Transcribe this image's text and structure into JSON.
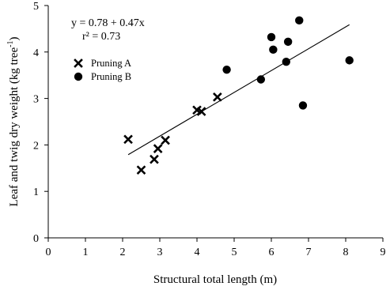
{
  "chart_data": {
    "type": "scatter",
    "title": "",
    "xlabel": "Structural total length (m)",
    "ylabel": "Leaf and twig dry weight (kg tree",
    "ylabel_superscript": "-1",
    "ylabel_suffix": ")",
    "xlim": [
      0,
      9
    ],
    "ylim": [
      0,
      5
    ],
    "x_ticks": [
      "0",
      "1",
      "2",
      "3",
      "4",
      "5",
      "6",
      "7",
      "8",
      "9"
    ],
    "y_ticks": [
      "0",
      "1",
      "2",
      "3",
      "4",
      "5"
    ],
    "grid": false,
    "legend_position": "top-left",
    "series": [
      {
        "name": "Pruning A",
        "marker": "x",
        "points": [
          {
            "x": 2.15,
            "y": 2.12
          },
          {
            "x": 2.5,
            "y": 1.46
          },
          {
            "x": 2.85,
            "y": 1.69
          },
          {
            "x": 2.95,
            "y": 1.92
          },
          {
            "x": 3.15,
            "y": 2.1
          },
          {
            "x": 4.0,
            "y": 2.75
          },
          {
            "x": 4.12,
            "y": 2.72
          },
          {
            "x": 4.55,
            "y": 3.03
          }
        ]
      },
      {
        "name": "Pruning B",
        "marker": "circle",
        "points": [
          {
            "x": 4.8,
            "y": 3.62
          },
          {
            "x": 5.72,
            "y": 3.41
          },
          {
            "x": 6.0,
            "y": 4.32
          },
          {
            "x": 6.05,
            "y": 4.05
          },
          {
            "x": 6.4,
            "y": 3.79
          },
          {
            "x": 6.45,
            "y": 4.22
          },
          {
            "x": 6.75,
            "y": 4.68
          },
          {
            "x": 6.85,
            "y": 2.85
          },
          {
            "x": 8.1,
            "y": 3.82
          }
        ]
      }
    ],
    "regression": {
      "intercept": 0.78,
      "slope": 0.47,
      "x_start": 2.15,
      "x_end": 8.1,
      "equation": "y = 0.78 + 0.47x",
      "r2": "r² = 0.73"
    }
  }
}
